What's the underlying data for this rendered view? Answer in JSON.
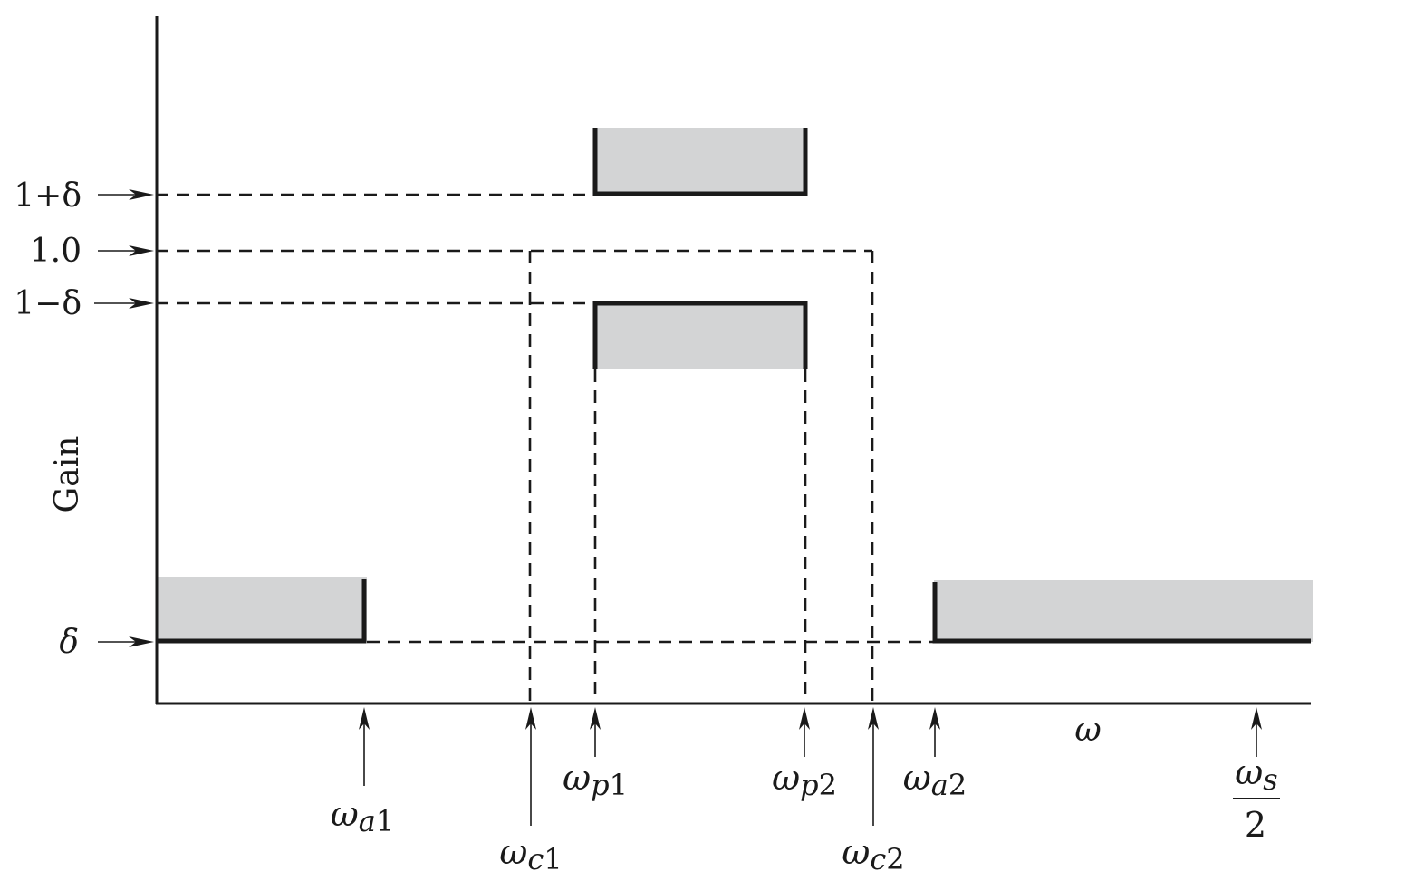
{
  "y_axis_label": "Gain",
  "x_axis_label": "ω",
  "y_ticks": [
    {
      "id": "one-plus-delta",
      "main": "1+δ",
      "value": "1+δ"
    },
    {
      "id": "one",
      "main": "1.0",
      "value": "1.0"
    },
    {
      "id": "one-minus-delta",
      "main": "1−δ",
      "value": "1−δ"
    },
    {
      "id": "delta",
      "main": "δ",
      "value": "δ"
    }
  ],
  "x_markers": [
    {
      "id": "wa1",
      "symbol": "ω",
      "sub": "a",
      "num": "1"
    },
    {
      "id": "wc1",
      "symbol": "ω",
      "sub": "c",
      "num": "1"
    },
    {
      "id": "wp1",
      "symbol": "ω",
      "sub": "p",
      "num": "1"
    },
    {
      "id": "wp2",
      "symbol": "ω",
      "sub": "p",
      "num": "2"
    },
    {
      "id": "wc2",
      "symbol": "ω",
      "sub": "c",
      "num": "2"
    },
    {
      "id": "wa2",
      "symbol": "ω",
      "sub": "a",
      "num": "2"
    }
  ],
  "half_sampling": {
    "numerator_symbol": "ω",
    "numerator_sub": "s",
    "denominator": "2"
  },
  "colors": {
    "ink": "#1a1a1a",
    "tolerance_fill": "#d3d4d5",
    "background": "#ffffff"
  }
}
